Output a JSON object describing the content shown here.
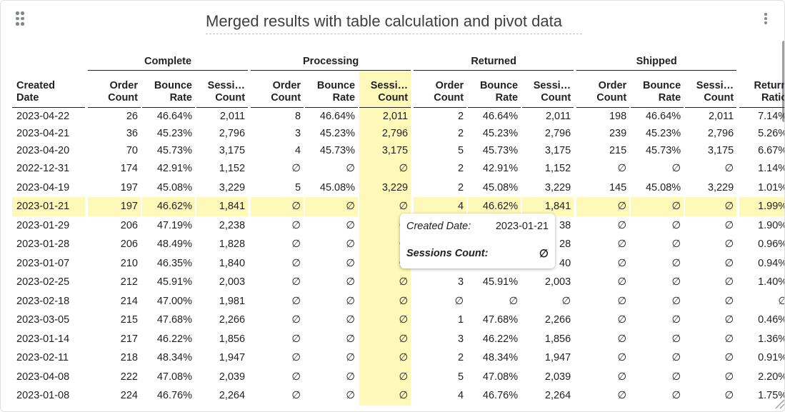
{
  "title": "Merged results with table calculation and pivot  data",
  "icons": {
    "drag": "drag-handle-icon",
    "menu": "more-vert-icon",
    "resize": "resize-grip-icon"
  },
  "colors": {
    "highlight": "#fef9b8",
    "text": "#202124"
  },
  "table": {
    "groups": [
      "Complete",
      "Processing",
      "Returned",
      "Shipped"
    ],
    "columns": [
      "Created\nDate",
      "Order\nCount",
      "Bounce\nRate",
      "Sessi…\nCount",
      "Order\nCount",
      "Bounce\nRate",
      "Sessi…\nCount",
      "Order\nCount",
      "Bounce\nRate",
      "Sessi…\nCount",
      "Order\nCount",
      "Bounce\nRate",
      "Sessi…\nCount",
      "Return\nRatio"
    ],
    "rows": [
      [
        "2023-04-22",
        "26",
        "46.64%",
        "2,011",
        "8",
        "46.64%",
        "2,011",
        "2",
        "46.64%",
        "2,011",
        "198",
        "46.64%",
        "2,011",
        "7.14%"
      ],
      [
        "2023-04-21",
        "36",
        "45.23%",
        "2,796",
        "3",
        "45.23%",
        "2,796",
        "2",
        "45.23%",
        "2,796",
        "239",
        "45.23%",
        "2,796",
        "5.26%"
      ],
      [
        "2023-04-20",
        "70",
        "45.73%",
        "3,175",
        "4",
        "45.73%",
        "3,175",
        "5",
        "45.73%",
        "3,175",
        "215",
        "45.73%",
        "3,175",
        "6.67%"
      ],
      [
        "2022-12-31",
        "174",
        "42.91%",
        "1,152",
        "∅",
        "∅",
        "∅",
        "2",
        "42.91%",
        "1,152",
        "∅",
        "∅",
        "∅",
        "1.14%"
      ],
      [
        "2023-04-19",
        "197",
        "45.08%",
        "3,229",
        "5",
        "45.08%",
        "3,229",
        "2",
        "45.08%",
        "3,229",
        "145",
        "45.08%",
        "3,229",
        "1.01%"
      ],
      [
        "2023-01-21",
        "197",
        "46.62%",
        "1,841",
        "∅",
        "∅",
        "∅",
        "4",
        "46.62%",
        "1,841",
        "∅",
        "∅",
        "∅",
        "1.99%"
      ],
      [
        "2023-01-29",
        "206",
        "47.19%",
        "2,238",
        "∅",
        "∅",
        "∅",
        "",
        "",
        "38",
        "∅",
        "∅",
        "∅",
        "1.90%"
      ],
      [
        "2023-01-28",
        "206",
        "48.49%",
        "1,828",
        "∅",
        "∅",
        "∅",
        "",
        "",
        "28",
        "∅",
        "∅",
        "∅",
        "0.96%"
      ],
      [
        "2023-01-07",
        "210",
        "46.35%",
        "1,840",
        "∅",
        "∅",
        "∅",
        "",
        "",
        "40",
        "∅",
        "∅",
        "∅",
        "0.94%"
      ],
      [
        "2023-02-25",
        "212",
        "45.91%",
        "2,003",
        "∅",
        "∅",
        "∅",
        "3",
        "45.91%",
        "2,003",
        "∅",
        "∅",
        "∅",
        "1.40%"
      ],
      [
        "2023-02-18",
        "214",
        "47.00%",
        "1,981",
        "∅",
        "∅",
        "∅",
        "∅",
        "∅",
        "∅",
        "∅",
        "∅",
        "∅",
        "∅"
      ],
      [
        "2023-03-05",
        "215",
        "47.68%",
        "2,266",
        "∅",
        "∅",
        "∅",
        "1",
        "47.68%",
        "2,266",
        "∅",
        "∅",
        "∅",
        "0.46%"
      ],
      [
        "2023-01-14",
        "217",
        "46.22%",
        "1,856",
        "∅",
        "∅",
        "∅",
        "3",
        "46.22%",
        "1,856",
        "∅",
        "∅",
        "∅",
        "1.36%"
      ],
      [
        "2023-02-11",
        "218",
        "48.34%",
        "1,947",
        "∅",
        "∅",
        "∅",
        "2",
        "48.34%",
        "1,947",
        "∅",
        "∅",
        "∅",
        "0.91%"
      ],
      [
        "2023-04-08",
        "222",
        "47.08%",
        "2,039",
        "∅",
        "∅",
        "∅",
        "5",
        "47.08%",
        "2,039",
        "∅",
        "∅",
        "∅",
        "2.20%"
      ],
      [
        "2023-01-08",
        "224",
        "46.76%",
        "2,264",
        "∅",
        "∅",
        "∅",
        "4",
        "46.76%",
        "2,264",
        "∅",
        "∅",
        "∅",
        "1.75%"
      ]
    ],
    "highlighted_column": 6,
    "highlighted_row": 5
  },
  "tooltip": {
    "label1": "Created Date:",
    "value1": "2023-01-21",
    "label2": "Sessions Count:",
    "value2": "∅"
  }
}
